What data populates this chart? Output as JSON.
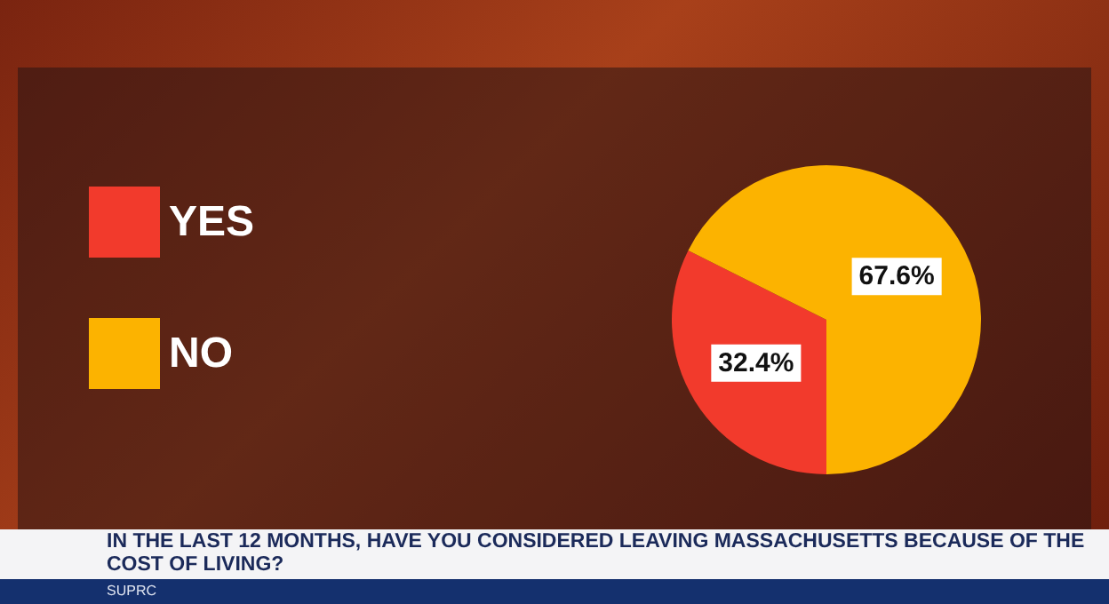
{
  "chart_data": {
    "type": "pie",
    "title": "IN THE LAST 12 MONTHS, HAVE YOU CONSIDERED LEAVING MASSACHUSETTS BECAUSE OF THE COST OF LIVING?",
    "annotations": [
      "SUPRC"
    ],
    "categories": [
      "YES",
      "NO"
    ],
    "values": [
      32.4,
      67.6
    ],
    "colors": [
      "#f23a2c",
      "#fcb300"
    ],
    "value_labels": [
      "32.4%",
      "67.6%"
    ],
    "legend": "left"
  }
}
